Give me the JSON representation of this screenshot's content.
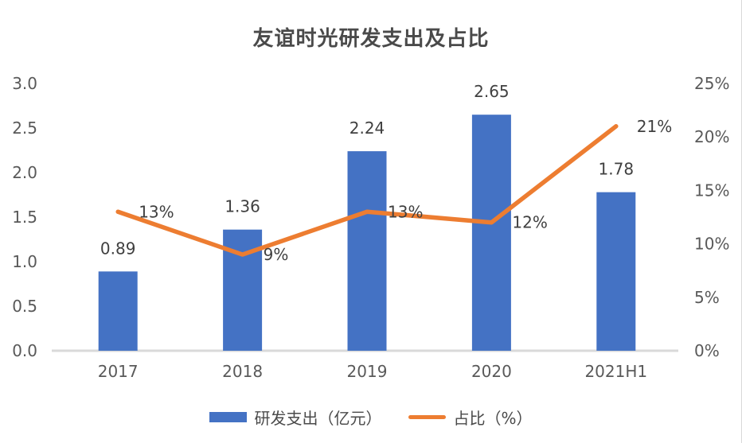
{
  "chart_data": {
    "type": "bar+line combo",
    "title": "友谊时光研发支出及占比",
    "categories": [
      "2017",
      "2018",
      "2019",
      "2020",
      "2021H1"
    ],
    "series": [
      {
        "name": "研发支出（亿元）",
        "type": "bar",
        "axis": "left",
        "values": [
          0.89,
          1.36,
          2.24,
          2.65,
          1.78
        ],
        "labels": [
          "0.89",
          "1.36",
          "2.24",
          "2.65",
          "1.78"
        ],
        "color": "#4472C4"
      },
      {
        "name": "占比（%）",
        "type": "line",
        "axis": "right",
        "values": [
          13,
          9,
          13,
          12,
          21
        ],
        "labels": [
          "13%",
          "9%",
          "13%",
          "12%",
          "21%"
        ],
        "color": "#ED7D31"
      }
    ],
    "left_axis": {
      "min": 0,
      "max": 3,
      "ticks": [
        "3.0",
        "2.5",
        "2.0",
        "1.5",
        "1.0",
        "0.5",
        "0.0"
      ]
    },
    "right_axis": {
      "min": 0,
      "max": 25,
      "ticks": [
        "25%",
        "20%",
        "15%",
        "10%",
        "5%",
        "0%"
      ]
    },
    "grid": false,
    "legend_position": "bottom"
  },
  "colors": {
    "bar": "#4472C4",
    "line": "#ED7D31",
    "axis_text": "#595959",
    "data_label": "#404040",
    "axis_line": "#d9d9d9"
  }
}
